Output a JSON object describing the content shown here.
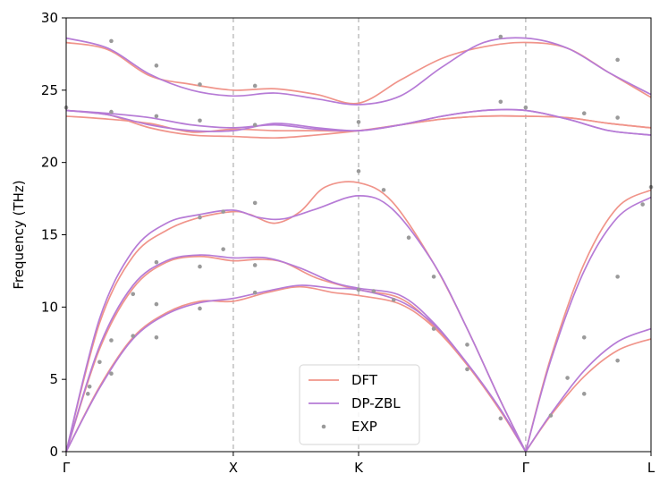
{
  "chart_data": {
    "type": "line",
    "title": "",
    "xlabel": "",
    "ylabel": "Frequency (THz)",
    "ylim": [
      0,
      30
    ],
    "yticks": [
      0,
      5,
      10,
      15,
      20,
      25,
      30
    ],
    "xlim": [
      0,
      3.5
    ],
    "kpoints": [
      {
        "label": "Γ",
        "x": 0
      },
      {
        "label": "X",
        "x": 1
      },
      {
        "label": "K",
        "x": 1.75
      },
      {
        "label": "Γ",
        "x": 2.75
      },
      {
        "label": "L",
        "x": 3.5
      }
    ],
    "grid": "dashed vertical lines at interior k-points",
    "legend": {
      "position": "lower-center",
      "entries": [
        "DFT",
        "DP-ZBL",
        "EXP"
      ]
    },
    "colors": {
      "DFT": "#f0948a",
      "DP-ZBL": "#b67bd6",
      "EXP": "#9a9a9a"
    },
    "series": [
      {
        "name": "DFT",
        "branches": [
          [
            [
              0,
              0
            ],
            [
              0.2,
              4.5
            ],
            [
              0.4,
              7.9
            ],
            [
              0.6,
              9.6
            ],
            [
              0.8,
              10.4
            ],
            [
              1,
              10.4
            ],
            [
              1.2,
              11.0
            ],
            [
              1.4,
              11.4
            ],
            [
              1.6,
              11.0
            ],
            [
              1.75,
              10.8
            ],
            [
              2.0,
              10.2
            ],
            [
              2.2,
              8.6
            ],
            [
              2.4,
              6.0
            ],
            [
              2.6,
              2.8
            ],
            [
              2.75,
              0
            ]
          ],
          [
            [
              0,
              0
            ],
            [
              0.2,
              7.1
            ],
            [
              0.4,
              11.3
            ],
            [
              0.6,
              13.1
            ],
            [
              0.8,
              13.5
            ],
            [
              1,
              13.2
            ],
            [
              1.15,
              13.3
            ],
            [
              1.3,
              13.1
            ],
            [
              1.5,
              12.0
            ],
            [
              1.75,
              11.2
            ],
            [
              2.0,
              10.6
            ],
            [
              2.2,
              8.7
            ],
            [
              2.4,
              6.0
            ],
            [
              2.6,
              2.8
            ],
            [
              2.75,
              0
            ]
          ],
          [
            [
              0,
              0
            ],
            [
              0.2,
              8.9
            ],
            [
              0.4,
              13.5
            ],
            [
              0.6,
              15.3
            ],
            [
              0.8,
              16.2
            ],
            [
              1,
              16.6
            ],
            [
              1.1,
              16.4
            ],
            [
              1.25,
              15.8
            ],
            [
              1.4,
              16.6
            ],
            [
              1.55,
              18.3
            ],
            [
              1.75,
              18.6
            ],
            [
              1.95,
              17.3
            ],
            [
              2.2,
              13.0
            ],
            [
              2.4,
              8.5
            ],
            [
              2.6,
              3.5
            ],
            [
              2.75,
              0
            ]
          ],
          [
            [
              2.75,
              0
            ],
            [
              2.9,
              2.5
            ],
            [
              3.1,
              5.2
            ],
            [
              3.3,
              7.0
            ],
            [
              3.5,
              7.8
            ]
          ],
          [
            [
              2.75,
              0
            ],
            [
              2.9,
              6.5
            ],
            [
              3.1,
              13.0
            ],
            [
              3.3,
              16.9
            ],
            [
              3.5,
              18.1
            ]
          ],
          [
            [
              0,
              23.2
            ],
            [
              0.25,
              23.0
            ],
            [
              0.5,
              22.7
            ],
            [
              0.75,
              22.1
            ],
            [
              1,
              22.3
            ],
            [
              1.25,
              22.2
            ],
            [
              1.5,
              22.2
            ],
            [
              1.75,
              22.2
            ],
            [
              2.0,
              22.6
            ],
            [
              2.25,
              23.0
            ],
            [
              2.5,
              23.2
            ],
            [
              2.75,
              23.2
            ],
            [
              3.0,
              23.1
            ],
            [
              3.25,
              22.7
            ],
            [
              3.5,
              22.4
            ]
          ],
          [
            [
              0,
              23.6
            ],
            [
              0.25,
              23.3
            ],
            [
              0.5,
              22.4
            ],
            [
              0.75,
              21.9
            ],
            [
              1,
              21.8
            ],
            [
              1.25,
              21.7
            ],
            [
              1.5,
              21.9
            ],
            [
              1.75,
              22.2
            ],
            [
              2.0,
              22.6
            ],
            [
              2.25,
              23.0
            ],
            [
              2.5,
              23.2
            ],
            [
              2.75,
              23.2
            ],
            [
              3.0,
              23.1
            ],
            [
              3.25,
              22.7
            ],
            [
              3.5,
              22.4
            ]
          ],
          [
            [
              0,
              28.3
            ],
            [
              0.25,
              27.8
            ],
            [
              0.5,
              26.0
            ],
            [
              0.75,
              25.4
            ],
            [
              1,
              25.0
            ],
            [
              1.25,
              25.1
            ],
            [
              1.5,
              24.7
            ],
            [
              1.75,
              24.1
            ],
            [
              2.0,
              25.7
            ],
            [
              2.25,
              27.2
            ],
            [
              2.5,
              28.0
            ],
            [
              2.75,
              28.3
            ],
            [
              3.0,
              27.9
            ],
            [
              3.25,
              26.2
            ],
            [
              3.5,
              24.5
            ]
          ]
        ]
      },
      {
        "name": "DP-ZBL",
        "branches": [
          [
            [
              0,
              0
            ],
            [
              0.2,
              4.4
            ],
            [
              0.4,
              7.8
            ],
            [
              0.6,
              9.5
            ],
            [
              0.8,
              10.3
            ],
            [
              1,
              10.6
            ],
            [
              1.2,
              11.1
            ],
            [
              1.4,
              11.5
            ],
            [
              1.6,
              11.3
            ],
            [
              1.75,
              11.2
            ],
            [
              2.0,
              10.4
            ],
            [
              2.2,
              8.8
            ],
            [
              2.4,
              6.1
            ],
            [
              2.6,
              2.9
            ],
            [
              2.75,
              0
            ]
          ],
          [
            [
              0,
              0
            ],
            [
              0.2,
              7.3
            ],
            [
              0.4,
              11.5
            ],
            [
              0.6,
              13.2
            ],
            [
              0.8,
              13.6
            ],
            [
              1,
              13.4
            ],
            [
              1.2,
              13.4
            ],
            [
              1.4,
              12.7
            ],
            [
              1.6,
              11.7
            ],
            [
              1.75,
              11.3
            ],
            [
              2.0,
              10.8
            ],
            [
              2.2,
              8.9
            ],
            [
              2.4,
              6.1
            ],
            [
              2.6,
              2.9
            ],
            [
              2.75,
              0
            ]
          ],
          [
            [
              0,
              0
            ],
            [
              0.2,
              9.2
            ],
            [
              0.4,
              13.9
            ],
            [
              0.6,
              15.8
            ],
            [
              0.8,
              16.4
            ],
            [
              1,
              16.7
            ],
            [
              1.15,
              16.2
            ],
            [
              1.3,
              16.1
            ],
            [
              1.5,
              16.8
            ],
            [
              1.75,
              17.7
            ],
            [
              1.95,
              16.8
            ],
            [
              2.2,
              13.0
            ],
            [
              2.4,
              8.5
            ],
            [
              2.6,
              3.5
            ],
            [
              2.75,
              0
            ]
          ],
          [
            [
              2.75,
              0
            ],
            [
              2.9,
              2.6
            ],
            [
              3.1,
              5.6
            ],
            [
              3.3,
              7.6
            ],
            [
              3.5,
              8.5
            ]
          ],
          [
            [
              2.75,
              0
            ],
            [
              2.9,
              6.3
            ],
            [
              3.1,
              12.5
            ],
            [
              3.3,
              16.2
            ],
            [
              3.5,
              17.6
            ]
          ],
          [
            [
              0,
              23.6
            ],
            [
              0.25,
              23.4
            ],
            [
              0.5,
              23.1
            ],
            [
              0.75,
              22.6
            ],
            [
              1,
              22.4
            ],
            [
              1.25,
              22.6
            ],
            [
              1.5,
              22.3
            ],
            [
              1.75,
              22.2
            ],
            [
              2.0,
              22.6
            ],
            [
              2.25,
              23.2
            ],
            [
              2.5,
              23.6
            ],
            [
              2.75,
              23.6
            ],
            [
              3.0,
              23.0
            ],
            [
              3.25,
              22.2
            ],
            [
              3.5,
              21.9
            ]
          ],
          [
            [
              0,
              23.6
            ],
            [
              0.25,
              23.3
            ],
            [
              0.5,
              22.6
            ],
            [
              0.75,
              22.2
            ],
            [
              1,
              22.2
            ],
            [
              1.25,
              22.7
            ],
            [
              1.5,
              22.4
            ],
            [
              1.75,
              22.2
            ],
            [
              2.0,
              22.6
            ],
            [
              2.25,
              23.2
            ],
            [
              2.5,
              23.6
            ],
            [
              2.75,
              23.6
            ],
            [
              3.0,
              23.0
            ],
            [
              3.25,
              22.2
            ],
            [
              3.5,
              21.9
            ]
          ],
          [
            [
              0,
              28.6
            ],
            [
              0.25,
              27.9
            ],
            [
              0.5,
              26.1
            ],
            [
              0.75,
              25.0
            ],
            [
              1,
              24.6
            ],
            [
              1.25,
              24.8
            ],
            [
              1.5,
              24.4
            ],
            [
              1.75,
              24.0
            ],
            [
              2.0,
              24.6
            ],
            [
              2.25,
              26.6
            ],
            [
              2.5,
              28.3
            ],
            [
              2.75,
              28.6
            ],
            [
              3.0,
              27.9
            ],
            [
              3.25,
              26.2
            ],
            [
              3.5,
              24.7
            ]
          ]
        ]
      }
    ],
    "exp_points": [
      [
        0.13,
        4.0
      ],
      [
        0.14,
        4.5
      ],
      [
        0.2,
        6.2
      ],
      [
        0.27,
        7.7
      ],
      [
        0.27,
        5.4
      ],
      [
        0.4,
        10.9
      ],
      [
        0.4,
        8.0
      ],
      [
        0.54,
        13.1
      ],
      [
        0.54,
        10.2
      ],
      [
        0.54,
        7.9
      ],
      [
        0.8,
        16.2
      ],
      [
        0.8,
        12.8
      ],
      [
        0.8,
        9.9
      ],
      [
        0.94,
        16.6
      ],
      [
        0.94,
        14.0
      ],
      [
        1.13,
        17.2
      ],
      [
        1.13,
        12.9
      ],
      [
        1.13,
        11.0
      ],
      [
        1.75,
        19.4
      ],
      [
        1.75,
        11.2
      ],
      [
        1.84,
        11.1
      ],
      [
        1.9,
        18.1
      ],
      [
        1.96,
        10.5
      ],
      [
        2.05,
        14.8
      ],
      [
        2.2,
        12.1
      ],
      [
        2.2,
        8.5
      ],
      [
        2.4,
        7.4
      ],
      [
        2.4,
        5.7
      ],
      [
        2.6,
        2.3
      ],
      [
        2.9,
        2.5
      ],
      [
        3.0,
        5.1
      ],
      [
        3.1,
        7.9
      ],
      [
        3.1,
        4.0
      ],
      [
        3.3,
        12.1
      ],
      [
        3.3,
        6.3
      ],
      [
        3.45,
        17.1
      ],
      [
        3.5,
        18.3
      ],
      [
        0,
        23.8
      ],
      [
        0.27,
        23.5
      ],
      [
        0.54,
        23.2
      ],
      [
        0.8,
        22.9
      ],
      [
        1.13,
        22.6
      ],
      [
        1.75,
        22.8
      ],
      [
        2.6,
        24.2
      ],
      [
        2.75,
        23.8
      ],
      [
        3.1,
        23.4
      ],
      [
        3.3,
        23.1
      ],
      [
        0.27,
        28.4
      ],
      [
        0.54,
        26.7
      ],
      [
        0.8,
        25.4
      ],
      [
        1.13,
        25.3
      ],
      [
        2.6,
        28.7
      ],
      [
        3.3,
        27.1
      ]
    ]
  }
}
